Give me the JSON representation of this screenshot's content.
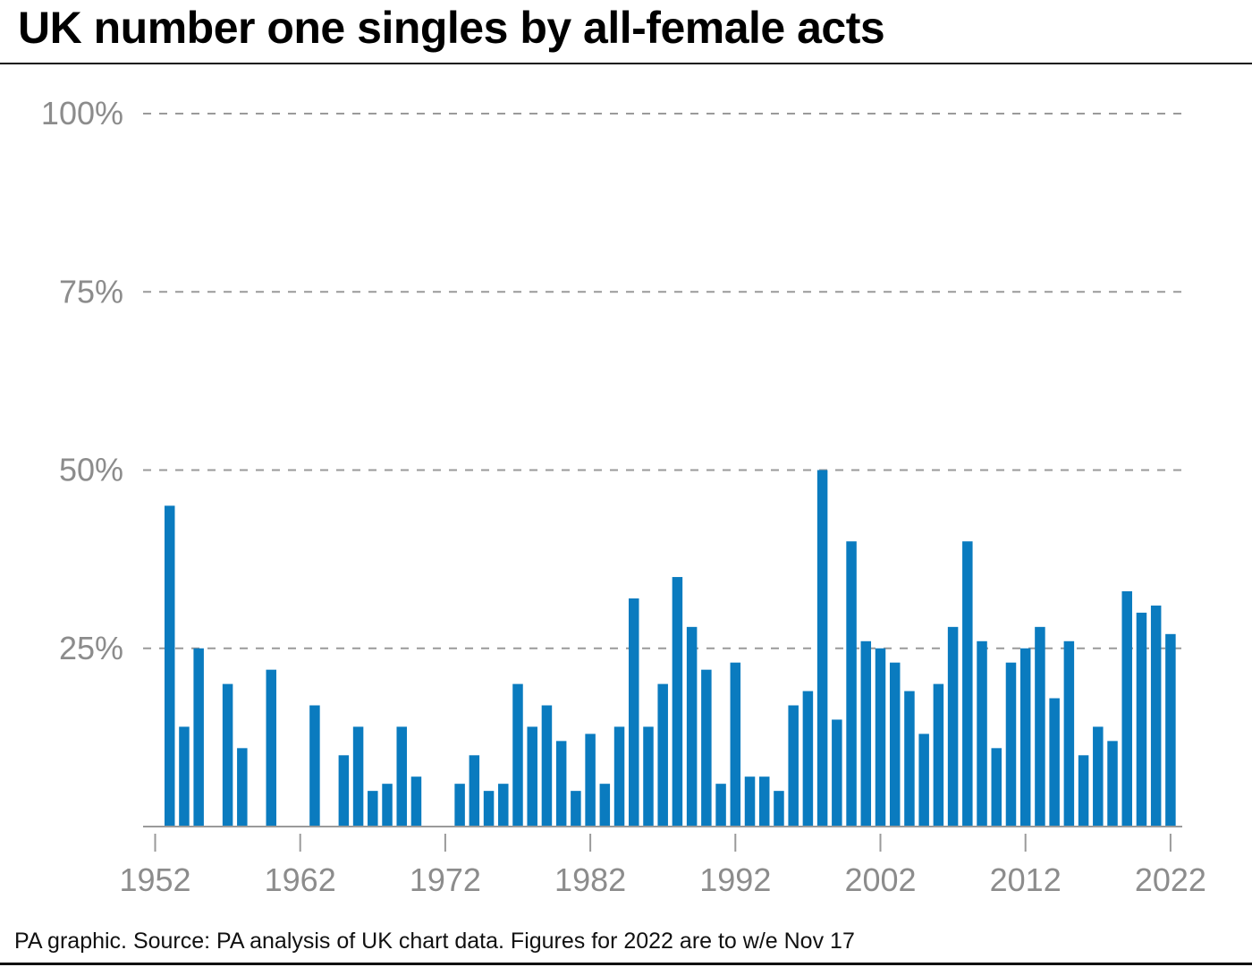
{
  "title": "UK number one singles by all-female acts",
  "footnote": "PA graphic. Source: PA analysis of UK chart data. Figures for 2022 are to w/e Nov 17",
  "colors": {
    "bar": "#0a7bbf",
    "grid": "#9a9a9a",
    "tick_label": "#8c8c8c",
    "axis": "#9a9a9a"
  },
  "chart_data": {
    "type": "bar",
    "title": "UK number one singles by all-female acts",
    "xlabel": "",
    "ylabel": "",
    "ylim": [
      0,
      100
    ],
    "y_ticks": [
      {
        "value": 25,
        "label": "25%"
      },
      {
        "value": 50,
        "label": "50%"
      },
      {
        "value": 75,
        "label": "75%"
      },
      {
        "value": 100,
        "label": "100%"
      }
    ],
    "x_ticks": [
      {
        "year": 1952,
        "label": "1952"
      },
      {
        "year": 1962,
        "label": "1962"
      },
      {
        "year": 1972,
        "label": "1972"
      },
      {
        "year": 1982,
        "label": "1982"
      },
      {
        "year": 1992,
        "label": "1992"
      },
      {
        "year": 2002,
        "label": "2002"
      },
      {
        "year": 2012,
        "label": "2012"
      },
      {
        "year": 2022,
        "label": "2022"
      }
    ],
    "grid": true,
    "unit": "%",
    "categories": [
      1952,
      1953,
      1954,
      1955,
      1956,
      1957,
      1958,
      1959,
      1960,
      1961,
      1962,
      1963,
      1964,
      1965,
      1966,
      1967,
      1968,
      1969,
      1970,
      1971,
      1972,
      1973,
      1974,
      1975,
      1976,
      1977,
      1978,
      1979,
      1980,
      1981,
      1982,
      1983,
      1984,
      1985,
      1986,
      1987,
      1988,
      1989,
      1990,
      1991,
      1992,
      1993,
      1994,
      1995,
      1996,
      1997,
      1998,
      1999,
      2000,
      2001,
      2002,
      2003,
      2004,
      2005,
      2006,
      2007,
      2008,
      2009,
      2010,
      2011,
      2012,
      2013,
      2014,
      2015,
      2016,
      2017,
      2018,
      2019,
      2020,
      2021,
      2022
    ],
    "values": [
      0,
      45,
      14,
      25,
      0,
      20,
      11,
      0,
      22,
      0,
      0,
      17,
      0,
      10,
      14,
      5,
      6,
      14,
      7,
      0,
      0,
      6,
      10,
      5,
      6,
      20,
      14,
      17,
      12,
      5,
      13,
      6,
      14,
      32,
      14,
      20,
      35,
      28,
      22,
      6,
      23,
      7,
      7,
      5,
      17,
      19,
      50,
      15,
      40,
      26,
      25,
      23,
      19,
      13,
      20,
      28,
      40,
      26,
      11,
      23,
      25,
      28,
      18,
      26,
      10,
      14,
      12,
      33,
      30,
      31,
      27
    ]
  }
}
